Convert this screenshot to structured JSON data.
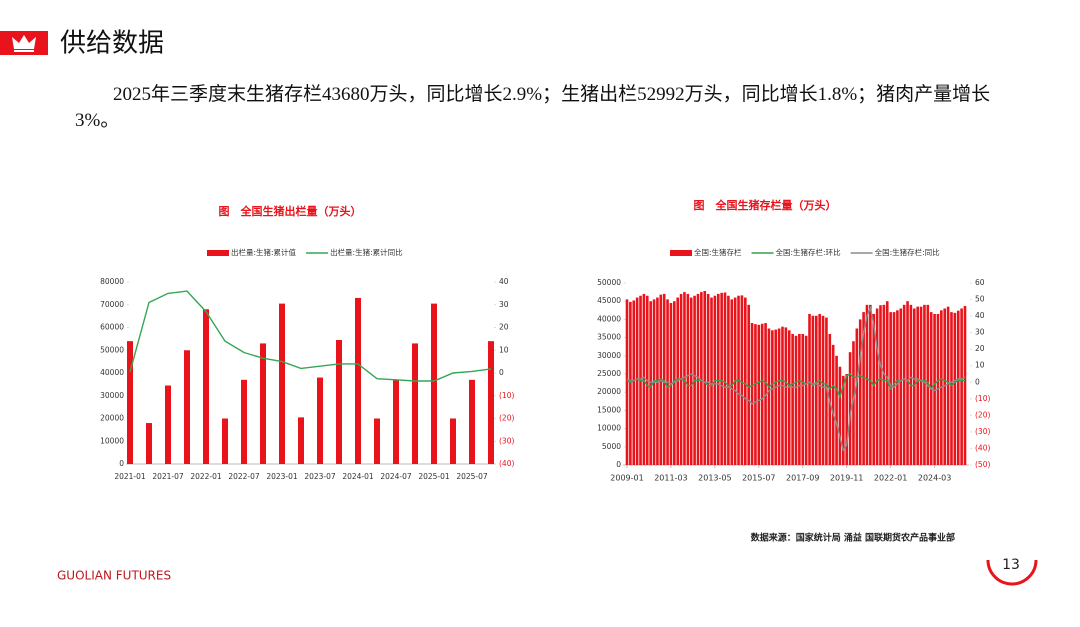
{
  "header": {
    "title": "供给数据",
    "text": "2025年三季度末生猪存栏43680万头，同比增长2.9%；生猪出栏52992万头，同比增长1.8%；猪肉产量增长3%。"
  },
  "chart_data": [
    {
      "type": "bar_line",
      "title": "图　全国生猪出栏量（万头）",
      "categories": [
        "2021-01",
        null,
        "2021-07",
        null,
        "2022-01",
        null,
        "2022-07",
        null,
        "2023-01",
        null,
        "2023-07",
        null,
        "2024-01",
        null,
        "2024-07",
        null,
        "2025-01",
        null,
        "2025-07",
        null
      ],
      "series": [
        {
          "name": "出栏量:生猪:累计值",
          "type": "bar",
          "color": "#e8131b",
          "values": [
            54000,
            18000,
            34500,
            50000,
            68000,
            20000,
            37000,
            53000,
            70500,
            20500,
            38000,
            54500,
            73000,
            20000,
            37000,
            53000,
            70500,
            20000,
            37000,
            54000
          ]
        },
        {
          "name": "出栏量:生猪:累计同比",
          "type": "line",
          "color": "#33a853",
          "axis": "y2",
          "values": [
            0.5,
            31,
            35,
            36,
            27,
            14,
            9,
            6.5,
            5,
            2,
            3,
            4,
            4,
            -2.5,
            -3,
            -3.5,
            -3.5,
            0,
            0.7,
            1.8
          ]
        }
      ],
      "ylim": [
        0,
        80000
      ],
      "yticks": [
        0,
        10000,
        20000,
        30000,
        40000,
        50000,
        60000,
        70000,
        80000
      ],
      "y2lim": [
        -40,
        40
      ],
      "y2ticks": [
        {
          "value": -40,
          "label": "(40)"
        },
        {
          "value": -30,
          "label": "(30)"
        },
        {
          "value": -20,
          "label": "(20)"
        },
        {
          "value": -10,
          "label": "(10)"
        },
        0,
        10,
        20,
        30,
        40
      ]
    },
    {
      "type": "bar_line",
      "title": "图　全国生猪存栏量（万头）",
      "x": [
        "2009-01",
        "2009-03",
        "2009-05",
        "2009-07",
        "2009-09",
        "2009-11",
        "2010-01",
        "2010-03",
        "2010-05",
        "2010-07",
        "2010-09",
        "2010-11",
        "2011-01",
        "2011-03",
        "2011-05",
        "2011-07",
        "2011-09",
        "2011-11",
        "2012-01",
        "2012-03",
        "2012-05",
        "2012-07",
        "2012-09",
        "2012-11",
        "2013-01",
        "2013-03",
        "2013-05",
        "2013-07",
        "2013-09",
        "2013-11",
        "2014-01",
        "2014-03",
        "2014-05",
        "2014-07",
        "2014-09",
        "2014-11",
        "2015-01",
        "2015-03",
        "2015-05",
        "2015-07",
        "2015-09",
        "2015-11",
        "2016-01",
        "2016-03",
        "2016-05",
        "2016-07",
        "2016-09",
        "2016-11",
        "2017-01",
        "2017-03",
        "2017-05",
        "2017-07",
        "2017-09",
        "2017-11",
        "2018-01",
        "2018-03",
        "2018-05",
        "2018-07",
        "2018-09",
        "2018-11",
        "2019-01",
        "2019-03",
        "2019-05",
        "2019-07",
        "2019-09",
        "2019-11",
        "2020-01",
        "2020-03",
        "2020-05",
        "2020-07",
        "2020-09",
        "2020-11",
        "2021-01",
        "2021-03",
        "2021-05",
        "2021-07",
        "2021-09",
        "2021-11",
        "2022-01",
        "2022-03",
        "2022-05",
        "2022-07",
        "2022-09",
        "2022-11",
        "2023-01",
        "2023-03",
        "2023-05",
        "2023-07",
        "2023-09",
        "2023-11",
        "2024-01",
        "2024-03",
        "2024-05",
        "2024-07",
        "2024-09",
        "2024-11",
        "2025-01",
        "2025-03",
        "2025-05",
        "2025-07",
        "2025-09"
      ],
      "series": [
        {
          "name": "全国:生猪存栏",
          "type": "bar",
          "color": "#e8131b",
          "values": [
            45500,
            44800,
            45200,
            46000,
            46500,
            47000,
            46500,
            45000,
            45500,
            46000,
            46800,
            47000,
            45500,
            44500,
            45000,
            46000,
            47000,
            47500,
            47000,
            46000,
            46500,
            47000,
            47500,
            47800,
            47000,
            46000,
            46500,
            47000,
            47300,
            47400,
            46500,
            45500,
            46000,
            46500,
            46600,
            46000,
            44000,
            39000,
            38700,
            38500,
            38800,
            39000,
            37500,
            37000,
            37200,
            37500,
            38000,
            37800,
            37000,
            36000,
            35500,
            36000,
            36000,
            35500,
            41500,
            41000,
            41000,
            41500,
            41000,
            40500,
            36000,
            33000,
            30000,
            27000,
            24500,
            25000,
            31000,
            34000,
            37500,
            40000,
            42000,
            44000,
            44000,
            41500,
            43000,
            43900,
            44000,
            45000,
            42000,
            42000,
            42500,
            43000,
            44000,
            45000,
            44000,
            43000,
            43500,
            43500,
            44000,
            44000,
            42000,
            41500,
            41500,
            42500,
            43000,
            43500,
            42000,
            41800,
            42400,
            43000,
            43680
          ]
        },
        {
          "name": "全国:生猪存栏:环比",
          "type": "line",
          "color": "#3a9e4a",
          "axis": "y2",
          "values": [
            1,
            0,
            1,
            2,
            1,
            1,
            -2,
            -3,
            1,
            1,
            2,
            1,
            -3,
            -2,
            1,
            2,
            2,
            1,
            -2,
            -2,
            1,
            1,
            1,
            0,
            -2,
            -2,
            1,
            1,
            1,
            0,
            -2,
            -2,
            1,
            1,
            0,
            -1,
            -3,
            -2,
            -1,
            0,
            1,
            0,
            -3,
            -1,
            0,
            1,
            1,
            0,
            -2,
            -1,
            0,
            1,
            0,
            -1,
            0,
            -2,
            0,
            1,
            -1,
            -1,
            -4,
            -2,
            -4,
            -9,
            -2,
            4,
            5,
            3,
            3,
            4,
            3,
            2,
            1,
            -2,
            1,
            2,
            1,
            1,
            -4,
            -1,
            1,
            1,
            2,
            1,
            -2,
            -2,
            1,
            1,
            1,
            0,
            -4,
            -1,
            1,
            2,
            1,
            0,
            -2,
            0,
            1,
            1,
            1
          ]
        },
        {
          "name": "全国:生猪存栏:同比",
          "type": "line",
          "color": "#8c8c8c",
          "axis": "y2",
          "values": [
            2,
            1,
            1,
            2,
            2,
            3,
            1,
            0,
            0,
            0,
            1,
            0,
            0,
            -1,
            0,
            1,
            2,
            3,
            4,
            5,
            4,
            3,
            1,
            0,
            0,
            -1,
            -1,
            -1,
            -2,
            -3,
            -3,
            -4,
            -5,
            -7,
            -8,
            -10,
            -11,
            -13,
            -12,
            -11,
            -10,
            -8,
            -5,
            -4,
            -3,
            -2,
            -2,
            -3,
            -3,
            -3,
            -3,
            -2,
            -2,
            -1,
            0,
            -1,
            -1,
            -2,
            -3,
            -3,
            -12,
            -19,
            -25,
            -33,
            -41,
            -38,
            -20,
            -10,
            0,
            15,
            30,
            40,
            45,
            35,
            20,
            10,
            5,
            3,
            -2,
            -3,
            -1,
            1,
            2,
            1,
            3,
            2,
            2,
            1,
            0,
            -2,
            -4,
            -5,
            -4,
            -3,
            -2,
            -1,
            0,
            1,
            2,
            2,
            3
          ]
        }
      ],
      "xticks": [
        "2009-01",
        "2011-03",
        "2013-05",
        "2015-07",
        "2017-09",
        "2019-11",
        "2022-01",
        "2024-03"
      ],
      "ylim": [
        0,
        50000
      ],
      "yticks": [
        0,
        5000,
        10000,
        15000,
        20000,
        25000,
        30000,
        35000,
        40000,
        45000,
        50000
      ],
      "y2lim": [
        -50,
        60
      ],
      "y2ticks": [
        {
          "value": -50,
          "label": "(50)"
        },
        {
          "value": -40,
          "label": "(40)"
        },
        {
          "value": -30,
          "label": "(30)"
        },
        {
          "value": -20,
          "label": "(20)"
        },
        {
          "value": -10,
          "label": "(10)"
        },
        0,
        10,
        20,
        30,
        40,
        50,
        60
      ]
    }
  ],
  "source": "数据来源：国家统计局 涌益 国联期货农产品事业部",
  "footer": {
    "company": "GUOLIAN FUTURES",
    "page": "13"
  }
}
